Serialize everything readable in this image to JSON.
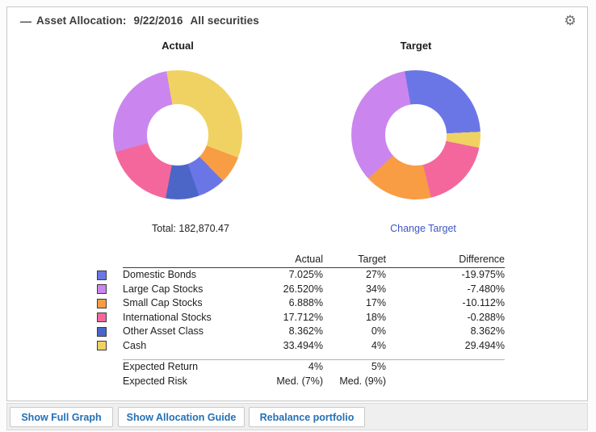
{
  "header": {
    "collapse_icon": "—",
    "title": "Asset Allocation:",
    "date": "9/22/2016",
    "scope": "All securities",
    "gear_icon": "⚙"
  },
  "charts": {
    "actual": {
      "title": "Actual",
      "total": "Total: 182,870.47",
      "start_deg": -10,
      "segments": [
        {
          "label": "Cash",
          "pct": 33.494,
          "color": "#f0d263"
        },
        {
          "label": "Small Cap Stocks",
          "pct": 6.888,
          "color": "#f89d44"
        },
        {
          "label": "Domestic Bonds",
          "pct": 7.025,
          "color": "#6b76e6"
        },
        {
          "label": "Other Asset Class",
          "pct": 8.362,
          "color": "#4c66c8"
        },
        {
          "label": "International Stocks",
          "pct": 17.712,
          "color": "#f4679d"
        },
        {
          "label": "Large Cap Stocks",
          "pct": 26.52,
          "color": "#ca86ee"
        }
      ]
    },
    "target": {
      "title": "Target",
      "link": "Change Target",
      "start_deg": -10,
      "segments": [
        {
          "label": "Domestic Bonds",
          "pct": 27,
          "color": "#6b76e6"
        },
        {
          "label": "Cash",
          "pct": 4,
          "color": "#f0d263"
        },
        {
          "label": "Other Asset Class",
          "pct": 0,
          "color": "#4c66c8"
        },
        {
          "label": "International Stocks",
          "pct": 18,
          "color": "#f4679d"
        },
        {
          "label": "Small Cap Stocks",
          "pct": 17,
          "color": "#f89d44"
        },
        {
          "label": "Large Cap Stocks",
          "pct": 34,
          "color": "#ca86ee"
        }
      ]
    }
  },
  "table": {
    "headers": {
      "actual": "Actual",
      "target": "Target",
      "difference": "Difference"
    },
    "rows": [
      {
        "label": "Domestic Bonds",
        "color": "#6b76e6",
        "actual": "7.025%",
        "target": "27%",
        "difference": "-19.975%"
      },
      {
        "label": "Large Cap Stocks",
        "color": "#ca86ee",
        "actual": "26.520%",
        "target": "34%",
        "difference": "-7.480%"
      },
      {
        "label": "Small Cap Stocks",
        "color": "#f89d44",
        "actual": "6.888%",
        "target": "17%",
        "difference": "-10.112%"
      },
      {
        "label": "International Stocks",
        "color": "#f4679d",
        "actual": "17.712%",
        "target": "18%",
        "difference": "-0.288%"
      },
      {
        "label": "Other Asset Class",
        "color": "#4c66c8",
        "actual": "8.362%",
        "target": "0%",
        "difference": "8.362%"
      },
      {
        "label": "Cash",
        "color": "#f0d263",
        "actual": "33.494%",
        "target": "4%",
        "difference": "29.494%"
      }
    ],
    "summary": [
      {
        "label": "Expected Return",
        "actual": "4%",
        "target": "5%"
      },
      {
        "label": "Expected Risk",
        "actual": "Med. (7%)",
        "target": "Med. (9%)"
      }
    ]
  },
  "footer": {
    "buttons": [
      "Show Full Graph",
      "Show Allocation Guide",
      "Rebalance portfolio"
    ]
  },
  "colors": {
    "link": "#3e55c6",
    "button_text": "#2470b3"
  },
  "chart_data": [
    {
      "type": "pie",
      "title": "Actual",
      "categories": [
        "Domestic Bonds",
        "Large Cap Stocks",
        "Small Cap Stocks",
        "International Stocks",
        "Other Asset Class",
        "Cash"
      ],
      "values": [
        7.025,
        26.52,
        6.888,
        17.712,
        8.362,
        33.494
      ],
      "total": "182,870.47",
      "donut": true
    },
    {
      "type": "pie",
      "title": "Target",
      "categories": [
        "Domestic Bonds",
        "Large Cap Stocks",
        "Small Cap Stocks",
        "International Stocks",
        "Other Asset Class",
        "Cash"
      ],
      "values": [
        27,
        34,
        17,
        18,
        0,
        4
      ],
      "donut": true
    }
  ]
}
